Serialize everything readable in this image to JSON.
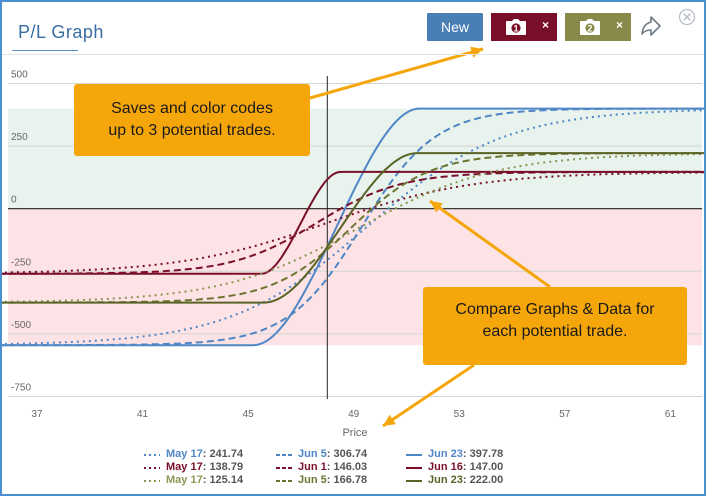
{
  "header": {
    "title": "P/L Graph",
    "new_button_label": "New",
    "snapshot_buttons": [
      {
        "number": "1",
        "close_glyph": "×",
        "color": "#7a0f2a",
        "icon": "camera-icon"
      },
      {
        "number": "2",
        "close_glyph": "×",
        "color": "#878a48",
        "icon": "camera-icon"
      }
    ],
    "share_icon": "share-arrow-icon",
    "close_icon": "close-circle-icon"
  },
  "callouts": {
    "top": [
      "Saves and color codes",
      "up to 3 potential trades."
    ],
    "bottom": [
      "Compare Graphs & Data for",
      "each potential trade."
    ]
  },
  "colors": {
    "blue": "#4f86c6",
    "maroon": "#7a0f2a",
    "olive": "#6b7530",
    "profit_zone": "#e7f3ec",
    "loss_zone": "#fde3e5",
    "callout": "#f5a60a"
  },
  "chart_data": {
    "type": "line",
    "xlabel": "Price",
    "ylabel": "",
    "xlim": [
      35.9,
      62.2
    ],
    "ylim": [
      -760,
      530
    ],
    "x_ticks": [
      37,
      41,
      45,
      49,
      53,
      57,
      61
    ],
    "y_ticks": [
      500,
      250,
      0,
      -250,
      -500,
      -750
    ],
    "current_price": 48,
    "profit_band": [
      0,
      400
    ],
    "loss_band": [
      -545,
      0
    ],
    "series": [
      {
        "trade": 1,
        "date": "May 17",
        "value": "241.74",
        "style": "dotted",
        "color": "#4f86c6",
        "max": 400,
        "min": -545,
        "mid": 49.5,
        "width": 2.6,
        "curve": "sigmoid"
      },
      {
        "trade": 1,
        "date": "Jun 5",
        "value": "306.74",
        "style": "dashed",
        "color": "#4f86c6",
        "max": 400,
        "min": -545,
        "mid": 49.3,
        "width": 1.4,
        "curve": "sigmoid"
      },
      {
        "trade": 1,
        "date": "Jun 23",
        "value": "397.78",
        "style": "solid",
        "color": "#4f86c6",
        "max": 400,
        "min": -545,
        "lo": 45.2,
        "hi": 51.5,
        "curve": "expiry"
      },
      {
        "trade": 2,
        "date": "May 17",
        "value": "138.79",
        "style": "dotted",
        "color": "#7a0f2a",
        "max": 147,
        "min": -260,
        "mid": 48.0,
        "width": 2.8,
        "curve": "sigmoid"
      },
      {
        "trade": 2,
        "date": "Jun 1",
        "value": "146.03",
        "style": "dashed",
        "color": "#7a0f2a",
        "max": 147,
        "min": -260,
        "mid": 47.6,
        "width": 1.6,
        "curve": "sigmoid"
      },
      {
        "trade": 2,
        "date": "Jun 16",
        "value": "147.00",
        "style": "solid",
        "color": "#7a0f2a",
        "max": 147,
        "min": -260,
        "lo": 45.5,
        "hi": 48.5,
        "curve": "expiry"
      },
      {
        "trade": 3,
        "date": "May 17",
        "value": "125.14",
        "style": "dotted",
        "color": "#8c9650",
        "max": 222,
        "min": -375,
        "mid": 49.2,
        "width": 2.6,
        "curve": "sigmoid"
      },
      {
        "trade": 3,
        "date": "Jun 5",
        "value": "166.78",
        "style": "dashed",
        "color": "#6b7530",
        "max": 222,
        "min": -375,
        "mid": 48.9,
        "width": 1.5,
        "curve": "sigmoid"
      },
      {
        "trade": 3,
        "date": "Jun 23",
        "value": "222.00",
        "style": "solid",
        "color": "#5a6326",
        "max": 222,
        "min": -375,
        "lo": 45.6,
        "hi": 51.4,
        "curve": "expiry"
      }
    ]
  }
}
